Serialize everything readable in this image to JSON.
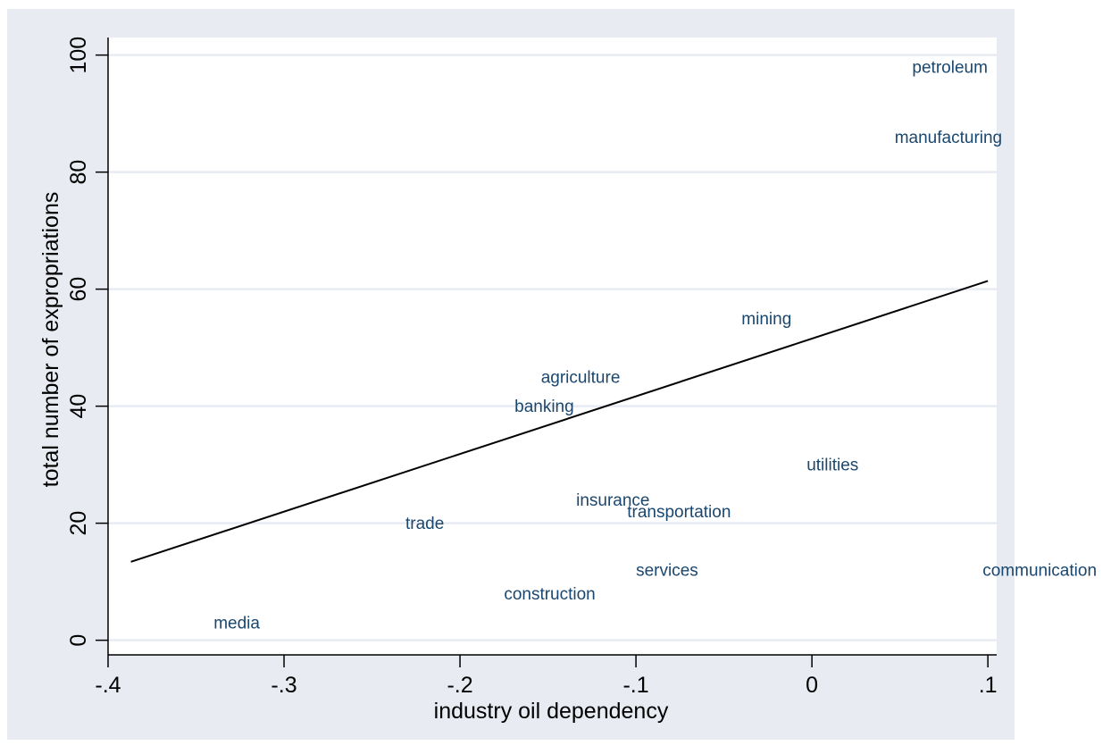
{
  "chart_data": {
    "type": "scatter",
    "title": "",
    "xlabel": "industry oil dependency",
    "ylabel": "total number of expropriations",
    "xlim": [
      -0.4,
      0.105
    ],
    "ylim": [
      -2.5,
      103
    ],
    "x_ticks": [
      {
        "value": -0.4,
        "label": "-.4"
      },
      {
        "value": -0.3,
        "label": "-.3"
      },
      {
        "value": -0.2,
        "label": "-.2"
      },
      {
        "value": -0.1,
        "label": "-.1"
      },
      {
        "value": 0,
        "label": "0"
      },
      {
        "value": 0.1,
        "label": ".1"
      }
    ],
    "y_ticks": [
      {
        "value": 0,
        "label": "0"
      },
      {
        "value": 20,
        "label": "20"
      },
      {
        "value": 40,
        "label": "40"
      },
      {
        "value": 60,
        "label": "60"
      },
      {
        "value": 80,
        "label": "80"
      },
      {
        "value": 100,
        "label": "100"
      }
    ],
    "grid": "horizontal",
    "points": [
      {
        "label": "petroleum",
        "x": 0.057,
        "y": 97
      },
      {
        "label": "manufacturing",
        "x": 0.047,
        "y": 85
      },
      {
        "label": "mining",
        "x": -0.04,
        "y": 54
      },
      {
        "label": "agriculture",
        "x": -0.154,
        "y": 44
      },
      {
        "label": "banking",
        "x": -0.169,
        "y": 39
      },
      {
        "label": "utilities",
        "x": -0.003,
        "y": 29
      },
      {
        "label": "insurance",
        "x": -0.134,
        "y": 23
      },
      {
        "label": "transportation",
        "x": -0.105,
        "y": 21
      },
      {
        "label": "trade",
        "x": -0.231,
        "y": 19
      },
      {
        "label": "services",
        "x": -0.1,
        "y": 11
      },
      {
        "label": "communication",
        "x": 0.097,
        "y": 11
      },
      {
        "label": "construction",
        "x": -0.175,
        "y": 7
      },
      {
        "label": "media",
        "x": -0.34,
        "y": 2
      }
    ],
    "fit_line": {
      "x": [
        -0.387,
        0.1
      ],
      "y": [
        13.4,
        61.4
      ]
    },
    "colors": {
      "outer_background": "#e8ebf2",
      "plot_background": "#ffffff",
      "gridline": "#e8ebf2",
      "point_label": "#1a476f",
      "fit_line": "#000000",
      "axis": "#000000"
    }
  }
}
